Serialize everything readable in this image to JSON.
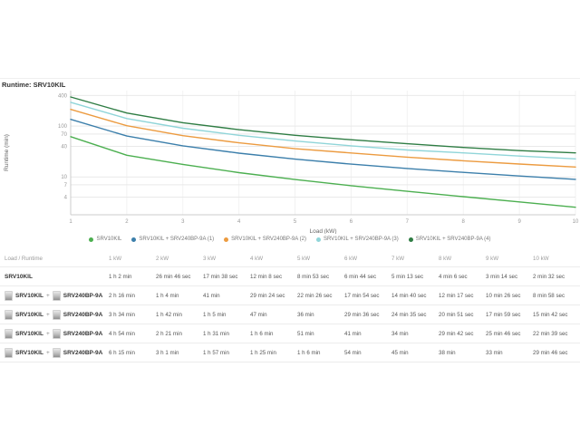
{
  "section_title": "Runtime: SRV10KIL",
  "chart_data": {
    "type": "line",
    "title": "Runtime: SRV10KIL",
    "xlabel": "Load (kW)",
    "ylabel": "Runtime (min)",
    "x_scale": "linear",
    "y_scale": "log",
    "grid": true,
    "legend_position": "bottom",
    "x": [
      1,
      2,
      3,
      4,
      5,
      6,
      7,
      8,
      9,
      10
    ],
    "x_ticks": [
      "1",
      "2",
      "3",
      "4",
      "5",
      "6",
      "7",
      "8",
      "9",
      "10"
    ],
    "y_ticks": [
      400,
      100,
      70,
      40,
      10,
      7,
      4
    ],
    "xlim": [
      1,
      10
    ],
    "ylim": [
      1.8,
      500
    ],
    "series": [
      {
        "name": "SRV10KIL",
        "color": "#4caf50",
        "values": [
          62,
          26.77,
          17.63,
          12.13,
          8.88,
          6.73,
          5.22,
          4.1,
          3.23,
          2.53
        ]
      },
      {
        "name": "SRV10KIL + SRV240BP-9A (1)",
        "color": "#3c7fab",
        "values": [
          136,
          64,
          41,
          29.4,
          22.43,
          17.9,
          14.67,
          12.28,
          10.43,
          8.97
        ]
      },
      {
        "name": "SRV10KIL + SRV240BP-9A (2)",
        "color": "#ec9b40",
        "values": [
          214,
          102,
          65,
          47,
          36,
          29.6,
          24.58,
          20.85,
          17.98,
          15.7
        ]
      },
      {
        "name": "SRV10KIL + SRV240BP-9A (3)",
        "color": "#90d5d9",
        "values": [
          294,
          141,
          91,
          66,
          51,
          41,
          34,
          29.7,
          25.77,
          22.65
        ]
      },
      {
        "name": "SRV10KIL + SRV240BP-9A (4)",
        "color": "#2f7d44",
        "values": [
          375,
          181,
          117,
          85,
          66,
          54,
          45,
          38,
          33,
          29.77
        ]
      }
    ]
  },
  "table": {
    "plus_sign": "+",
    "header": [
      "Load / Runtime",
      "1 kW",
      "2 kW",
      "3 kW",
      "4 kW",
      "5 kW",
      "6 kW",
      "7 kW",
      "8 kW",
      "9 kW",
      "10 kW"
    ],
    "rows": [
      {
        "products": [
          "SRV10KIL"
        ],
        "show_thumbs": false,
        "values": [
          "1 h 2 min",
          "26 min 46 sec",
          "17 min 38 sec",
          "12 min 8 sec",
          "8 min 53 sec",
          "6 min 44 sec",
          "5 min 13 sec",
          "4 min 6 sec",
          "3 min 14 sec",
          "2 min 32 sec"
        ]
      },
      {
        "products": [
          "SRV10KIL",
          "SRV240BP-9A"
        ],
        "show_thumbs": true,
        "values": [
          "2 h 16 min",
          "1 h 4 min",
          "41 min",
          "29 min 24 sec",
          "22 min 26 sec",
          "17 min 54 sec",
          "14 min 40 sec",
          "12 min 17 sec",
          "10 min 26 sec",
          "8 min 58 sec"
        ]
      },
      {
        "products": [
          "SRV10KIL",
          "SRV240BP-9A"
        ],
        "show_thumbs": true,
        "values": [
          "3 h 34 min",
          "1 h 42 min",
          "1 h 5 min",
          "47 min",
          "36 min",
          "29 min 36 sec",
          "24 min 35 sec",
          "20 min 51 sec",
          "17 min 59 sec",
          "15 min 42 sec"
        ]
      },
      {
        "products": [
          "SRV10KIL",
          "SRV240BP-9A"
        ],
        "show_thumbs": true,
        "values": [
          "4 h 54 min",
          "2 h 21 min",
          "1 h 31 min",
          "1 h 6 min",
          "51 min",
          "41 min",
          "34 min",
          "29 min 42 sec",
          "25 min 46 sec",
          "22 min 39 sec"
        ]
      },
      {
        "products": [
          "SRV10KIL",
          "SRV240BP-9A"
        ],
        "show_thumbs": true,
        "values": [
          "6 h 15 min",
          "3 h 1 min",
          "1 h 57 min",
          "1 h 25 min",
          "1 h 6 min",
          "54 min",
          "45 min",
          "38 min",
          "33 min",
          "29 min 46 sec"
        ]
      }
    ]
  }
}
